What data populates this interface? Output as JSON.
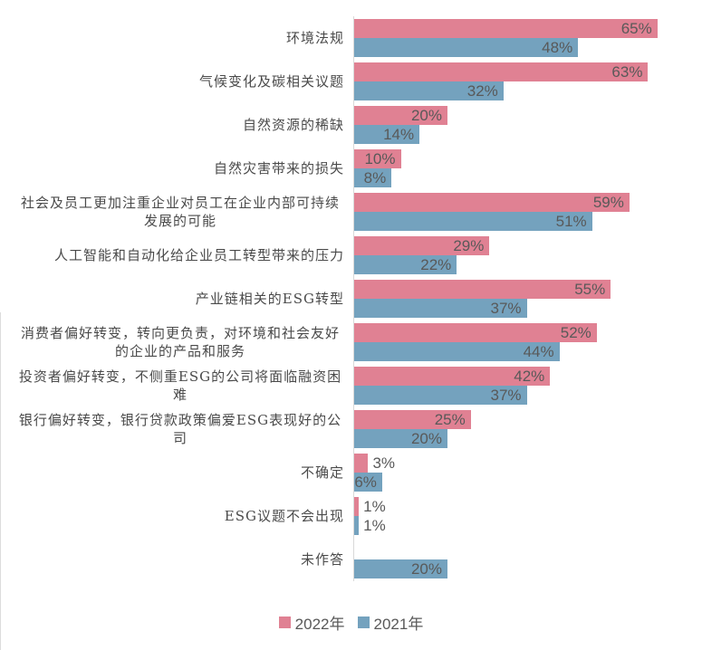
{
  "chart_data": {
    "type": "bar",
    "orientation": "horizontal",
    "title": "",
    "categories": [
      "环境法规",
      "气候变化及碳相关议题",
      "自然资源的稀缺",
      "自然灾害带来的损失",
      "社会及员工更加注重企业对员工在企业内部可持续发展的可能",
      "人工智能和自动化给企业员工转型带来的压力",
      "产业链相关的ESG转型",
      "消费者偏好转变，转向更负责，对环境和社会友好的企业的产品和服务",
      "投资者偏好转变，不侧重ESG的公司将面临融资困难",
      "银行偏好转变，银行贷款政策偏爱ESG表现好的公司",
      "不确定",
      "ESG议题不会出现",
      "未作答"
    ],
    "series": [
      {
        "name": "2022年",
        "color": "#E08193",
        "values": [
          65,
          63,
          20,
          10,
          59,
          29,
          55,
          52,
          42,
          25,
          3,
          1,
          null
        ]
      },
      {
        "name": "2021年",
        "color": "#74A2BE",
        "values": [
          48,
          32,
          14,
          8,
          51,
          22,
          37,
          44,
          37,
          20,
          6,
          1,
          20
        ]
      }
    ],
    "value_suffix": "%",
    "xlim": [
      0,
      73
    ],
    "grid": false,
    "value_label_style": "inside-end",
    "legend_position": "bottom"
  },
  "legend": {
    "items": [
      {
        "label": "2022年",
        "color": "#E08193"
      },
      {
        "label": "2021年",
        "color": "#74A2BE"
      }
    ]
  },
  "style": {
    "axis_line_color": "#D9D9D9",
    "value_label_color": "#595959",
    "category_label_color": "#4A4A4A",
    "background": "#FFFFFF"
  }
}
